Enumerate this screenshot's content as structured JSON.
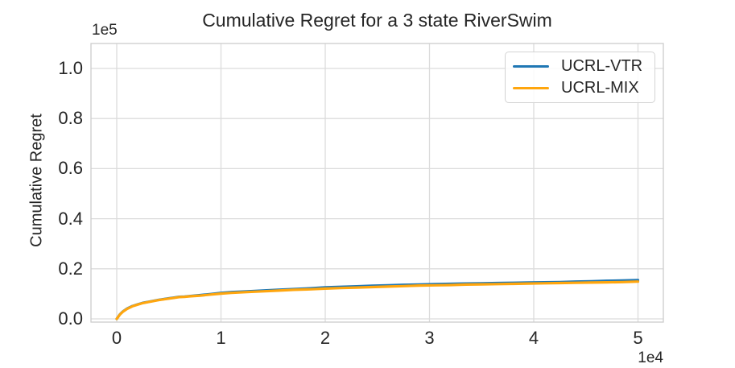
{
  "chart_data": {
    "type": "line",
    "title": "Cumulative Regret for a 3 state RiverSwim",
    "ylabel": "Cumulative Regret",
    "xlabel": "",
    "y_offset_label": "1e5",
    "x_offset_label": "1e4",
    "grid": true,
    "legend_position": "upper right",
    "xlim": [
      -0.25,
      5.24
    ],
    "ylim": [
      -0.013,
      1.1
    ],
    "xticks": {
      "values": [
        0,
        1,
        2,
        3,
        4,
        5
      ],
      "labels": [
        "0",
        "1",
        "2",
        "3",
        "4",
        "5"
      ]
    },
    "yticks": {
      "values": [
        0.0,
        0.2,
        0.4,
        0.6,
        0.8,
        1.0
      ],
      "labels": [
        "0.0",
        "0.2",
        "0.4",
        "0.6",
        "0.8",
        "1.0"
      ]
    },
    "x_units": "1e4",
    "y_units": "1e5",
    "series": [
      {
        "name": "UCRL-VTR",
        "color": "#1f77b4",
        "x": [
          0,
          0.03,
          0.06,
          0.1,
          0.15,
          0.2,
          0.25,
          0.3,
          0.4,
          0.5,
          0.55,
          0.6,
          0.65,
          0.7,
          0.8,
          0.9,
          1.0,
          1.1,
          1.25,
          1.4,
          1.55,
          1.7,
          1.85,
          2.0,
          2.15,
          2.3,
          2.45,
          2.6,
          2.75,
          2.9,
          3.05,
          3.2,
          3.35,
          3.5,
          3.65,
          3.8,
          3.95,
          4.1,
          4.25,
          4.4,
          4.55,
          4.7,
          4.85,
          5.0
        ],
        "y": [
          0,
          0.018,
          0.03,
          0.041,
          0.051,
          0.058,
          0.064,
          0.068,
          0.076,
          0.082,
          0.085,
          0.088,
          0.089,
          0.091,
          0.095,
          0.099,
          0.104,
          0.107,
          0.11,
          0.113,
          0.116,
          0.119,
          0.122,
          0.126,
          0.128,
          0.13,
          0.132,
          0.134,
          0.136,
          0.137,
          0.139,
          0.14,
          0.141,
          0.142,
          0.143,
          0.144,
          0.145,
          0.146,
          0.147,
          0.149,
          0.15,
          0.152,
          0.153,
          0.155
        ]
      },
      {
        "name": "UCRL-MIX",
        "color": "#ffa60e",
        "x": [
          0,
          0.03,
          0.06,
          0.1,
          0.15,
          0.2,
          0.25,
          0.3,
          0.4,
          0.5,
          0.55,
          0.6,
          0.65,
          0.7,
          0.8,
          0.9,
          1.0,
          1.1,
          1.25,
          1.4,
          1.55,
          1.7,
          1.85,
          2.0,
          2.15,
          2.3,
          2.45,
          2.6,
          2.75,
          2.9,
          3.05,
          3.2,
          3.35,
          3.5,
          3.65,
          3.8,
          3.95,
          4.1,
          4.25,
          4.4,
          4.55,
          4.7,
          4.85,
          5.0
        ],
        "y": [
          0,
          0.017,
          0.029,
          0.04,
          0.05,
          0.057,
          0.063,
          0.067,
          0.075,
          0.081,
          0.084,
          0.087,
          0.088,
          0.09,
          0.093,
          0.097,
          0.101,
          0.104,
          0.107,
          0.11,
          0.113,
          0.116,
          0.118,
          0.121,
          0.123,
          0.125,
          0.127,
          0.129,
          0.131,
          0.133,
          0.134,
          0.135,
          0.137,
          0.138,
          0.139,
          0.14,
          0.141,
          0.142,
          0.143,
          0.144,
          0.145,
          0.146,
          0.147,
          0.149
        ]
      }
    ],
    "style": {
      "grid_color": "#dcdcdc",
      "frame_color": "#cccccc",
      "text_color": "#262626",
      "background": "#ffffff"
    }
  }
}
